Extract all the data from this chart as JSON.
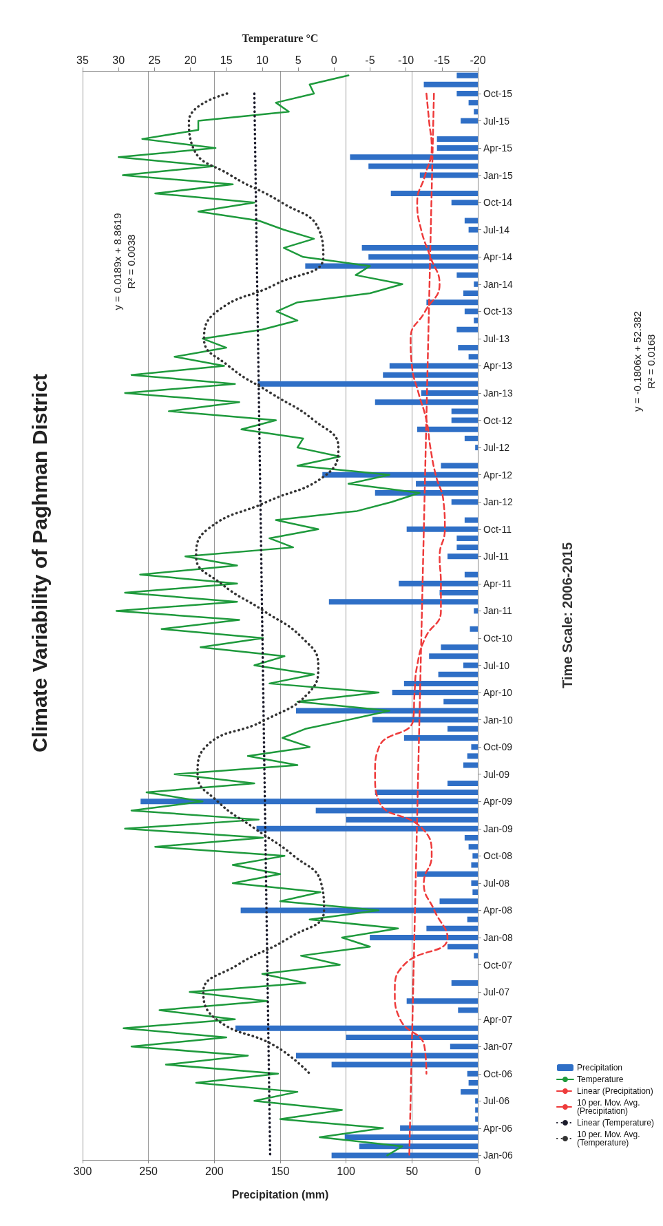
{
  "chart_data": {
    "type": "bar",
    "orientation": "horizontal",
    "title": "Climate Variability of Paghman District",
    "xlabel": "Precipitation (mm)",
    "x2label": "Temperature °C",
    "ylabel": "Time Scale: 2006-2015",
    "categories": [
      null,
      null,
      "Oct-15",
      null,
      null,
      "Jul-15",
      null,
      null,
      "Apr-15",
      null,
      null,
      "Jan-15",
      null,
      null,
      "Oct-14",
      null,
      null,
      "Jul-14",
      null,
      null,
      "Apr-14",
      null,
      null,
      "Jan-14",
      null,
      null,
      "Oct-13",
      null,
      null,
      "Jul-13",
      null,
      null,
      "Apr-13",
      null,
      null,
      "Jan-13",
      null,
      null,
      "Oct-12",
      null,
      null,
      "Jul-12",
      null,
      null,
      "Apr-12",
      null,
      null,
      "Jan-12",
      null,
      null,
      "Oct-11",
      null,
      null,
      "Jul-11",
      null,
      null,
      "Apr-11",
      null,
      null,
      "Jan-11",
      null,
      null,
      "Oct-10",
      null,
      null,
      "Jul-10",
      null,
      null,
      "Apr-10",
      null,
      null,
      "Jan-10",
      null,
      null,
      "Oct-09",
      null,
      null,
      "Jul-09",
      null,
      null,
      "Apr-09",
      null,
      null,
      "Jan-09",
      null,
      null,
      "Oct-08",
      null,
      null,
      "Jul-08",
      null,
      null,
      "Apr-08",
      null,
      null,
      "Jan-08",
      null,
      null,
      "Oct-07",
      null,
      null,
      "Jul-07",
      null,
      null,
      "Apr-07",
      null,
      null,
      "Jan-07",
      null,
      null,
      "Oct-06",
      null,
      null,
      "Jul-06",
      null,
      null,
      "Apr-06",
      null,
      null,
      "Jan-06"
    ],
    "series": [
      {
        "name": "Precipitation",
        "color": "#2f6fc6",
        "values": [
          16,
          41,
          16,
          7,
          3,
          13,
          0,
          31,
          31,
          97,
          83,
          44,
          0,
          66,
          20,
          0,
          10,
          7,
          0,
          88,
          83,
          131,
          16,
          3,
          11,
          39,
          10,
          3,
          16,
          0,
          15,
          7,
          67,
          72,
          167,
          43,
          78,
          20,
          20,
          46,
          10,
          2,
          0,
          28,
          118,
          47,
          78,
          20,
          0,
          10,
          54,
          16,
          16,
          23,
          0,
          10,
          60,
          29,
          113,
          3,
          0,
          6,
          0,
          28,
          37,
          11,
          30,
          56,
          65,
          26,
          138,
          80,
          23,
          56,
          5,
          8,
          11,
          0,
          23,
          78,
          256,
          123,
          100,
          168,
          10,
          7,
          4,
          5,
          46,
          5,
          4,
          29,
          180,
          8,
          39,
          82,
          23,
          3,
          0,
          0,
          20,
          0,
          54,
          15,
          0,
          184,
          100,
          21,
          138,
          111,
          8,
          7,
          13,
          2,
          2,
          2,
          59,
          101,
          90,
          111
        ]
      },
      {
        "name": "Temperature",
        "type": "line",
        "axis": "x2",
        "color": "#1e9a3c",
        "line_style": "solid",
        "values": [
          -2,
          3.4,
          2.8,
          8.1,
          6.3,
          18.9,
          18.9,
          26.7,
          16.5,
          30,
          16.8,
          29.4,
          14.1,
          24.9,
          11.1,
          18.9,
          10.5,
          7,
          2.8,
          7,
          4.3,
          -5,
          -3,
          -9.5,
          -5,
          5.1,
          8,
          5.1,
          10,
          18.3,
          15,
          22.2,
          15.3,
          28.2,
          13.8,
          29.1,
          13.2,
          23,
          8.1,
          12.9,
          4.3,
          5.1,
          -0.8,
          5.1,
          -7.7,
          -2,
          -11.9,
          -8,
          -3.2,
          8.1,
          2.2,
          9,
          5.7,
          20.7,
          13.5,
          27,
          13.5,
          29.1,
          13.5,
          30.3,
          13.2,
          24,
          9.9,
          18.6,
          6.9,
          11.1,
          2.8,
          9,
          -6.2,
          5.1,
          -7.7,
          -2,
          4,
          7.2,
          3.4,
          12,
          5.1,
          22.2,
          11.1,
          26.1,
          18.3,
          28.2,
          10.5,
          29.1,
          9.9,
          24.9,
          6.9,
          14.1,
          7.5,
          14.1,
          1.9,
          7.5,
          -6.2,
          3.4,
          -8.9,
          -1.1,
          -5,
          4.6,
          -0.8,
          10,
          4,
          20.1,
          9.3,
          24.3,
          13.8,
          29.3,
          15,
          28.2,
          12,
          23.4,
          7.8,
          19.2,
          5.1,
          11.1,
          -1.1,
          7.5,
          -6.8,
          2,
          -9.5,
          -7.4
        ]
      },
      {
        "name": "Linear (Precipitation)",
        "type": "line",
        "color": "#ee3b3b",
        "line_style": "dashed",
        "x": [
          "Oct-15",
          "Jan-06"
        ],
        "values": [
          33.3,
          52
        ]
      },
      {
        "name": "10 per. Mov. Avg. (Precipitation)",
        "type": "line",
        "color": "#ee3b3b",
        "line_style": "dashed",
        "x": [
          "Oct-15",
          "Jul-15",
          "Apr-15",
          "Jan-15",
          "Oct-14",
          "Jul-14",
          "Apr-14",
          "Jan-14",
          "Oct-13",
          "Jul-13",
          "Apr-13",
          "Jan-13",
          "Oct-12",
          "Jul-12",
          "Apr-12",
          "Jan-12",
          "Oct-11",
          "Jul-11",
          "Apr-11",
          "Jan-11",
          "Oct-10",
          "Jul-10",
          "Apr-10",
          "Jan-10",
          "Oct-09",
          "Jul-09",
          "Apr-09",
          "Jan-09",
          "Oct-08",
          "Jul-08",
          "Apr-08",
          "Jan-08",
          "Oct-07",
          "Jul-07",
          "Apr-07",
          "Jan-07",
          "Oct-06"
        ],
        "values": [
          39,
          37,
          35,
          40,
          46,
          43,
          36,
          29,
          40,
          51,
          50,
          45,
          39,
          36,
          32,
          26,
          25,
          29,
          28,
          28,
          40,
          46,
          48,
          49,
          75,
          78,
          75,
          42,
          35,
          41,
          33,
          23,
          56,
          63,
          59,
          40.5,
          39
        ]
      },
      {
        "name": "Linear (Temperature)",
        "type": "line",
        "axis": "x2",
        "color": "#1a1a2a",
        "line_style": "dotted",
        "x": [
          "Oct-15",
          "Jan-06"
        ],
        "values": [
          11.1,
          8.9
        ]
      },
      {
        "name": "10 per. Mov. Avg. (Temperature)",
        "type": "line",
        "axis": "x2",
        "color": "#333333",
        "line_style": "dotted",
        "x": [
          "Oct-15",
          "Jul-15",
          "Apr-15",
          "Jan-15",
          "Oct-14",
          "Jul-14",
          "Apr-14",
          "Jan-14",
          "Oct-13",
          "Jul-13",
          "Apr-13",
          "Jan-13",
          "Oct-12",
          "Jul-12",
          "Apr-12",
          "Jan-12",
          "Oct-11",
          "Jul-11",
          "Apr-11",
          "Jan-11",
          "Oct-10",
          "Jul-10",
          "Apr-10",
          "Jan-10",
          "Oct-09",
          "Jul-09",
          "Apr-09",
          "Jan-09",
          "Oct-08",
          "Jul-08",
          "Apr-08",
          "Jan-08",
          "Oct-07",
          "Jul-07",
          "Apr-07",
          "Jan-07",
          "Oct-06"
        ],
        "values": [
          14.9,
          20.2,
          19.6,
          14.4,
          7.3,
          2.1,
          1.5,
          8.1,
          16.3,
          18.1,
          14.7,
          8.8,
          2.8,
          -0.6,
          1.1,
          9.4,
          17.6,
          19.2,
          15.7,
          9.8,
          4.4,
          2.2,
          3.5,
          9.5,
          17.9,
          19,
          16.2,
          11,
          5.6,
          1.8,
          1.4,
          6.2,
          13.4,
          18.2,
          16.4,
          8.1,
          3.4
        ]
      }
    ],
    "xlim": [
      300,
      0
    ],
    "xticks": [
      0,
      50,
      100,
      150,
      200,
      250,
      300
    ],
    "x2lim": [
      35,
      -20
    ],
    "x2ticks": [
      -20,
      -15,
      -10,
      -5,
      0,
      5,
      10,
      15,
      20,
      25,
      30,
      35
    ],
    "annotations": [
      "y = 0.0189x + 8.8619\nR² = 0.0038",
      "y = -0.1806x + 52.382\nR² = 0.0168"
    ],
    "grid": "x",
    "legend": "bottom right",
    "marker": "none"
  }
}
